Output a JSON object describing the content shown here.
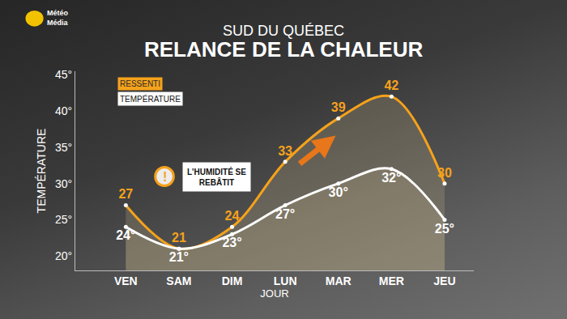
{
  "chart_data": {
    "type": "line",
    "logo": "Météo\nMédia",
    "subtitle": "SUD DU QUÉBEC",
    "title": "RELANCE DE LA CHALEUR",
    "x_label": "JOUR",
    "y_label": "TEMPÉRATURE",
    "categories": [
      "VEN",
      "SAM",
      "DIM",
      "LUN",
      "MAR",
      "MER",
      "JEU"
    ],
    "series": [
      {
        "name": "RESSENTI",
        "color": "#f5a21b",
        "values": [
          27,
          21,
          24,
          33,
          39,
          42,
          30
        ]
      },
      {
        "name": "TEMPÉRATURE",
        "color": "#ffffff",
        "values": [
          24,
          21,
          23,
          27,
          30,
          32,
          25
        ],
        "value_labels": [
          "24°",
          "21°",
          "23°",
          "27°",
          "30°",
          "32°",
          "25°"
        ]
      }
    ],
    "ylim": [
      18,
      45.5
    ],
    "yticks": [
      {
        "value": 20,
        "label": "20°"
      },
      {
        "value": 25,
        "label": "25°"
      },
      {
        "value": 30,
        "label": "30°"
      },
      {
        "value": 35,
        "label": "35°"
      },
      {
        "value": 40,
        "label": "40°"
      },
      {
        "value": 45,
        "label": "45°"
      }
    ],
    "grid": false,
    "legend": "upper left",
    "data_labels": true,
    "marker": "circle",
    "line_style": "solid",
    "annotations": [
      {
        "text": "L'HUMIDITÉ SE\nREBÂTIT",
        "icon": "!"
      }
    ]
  }
}
